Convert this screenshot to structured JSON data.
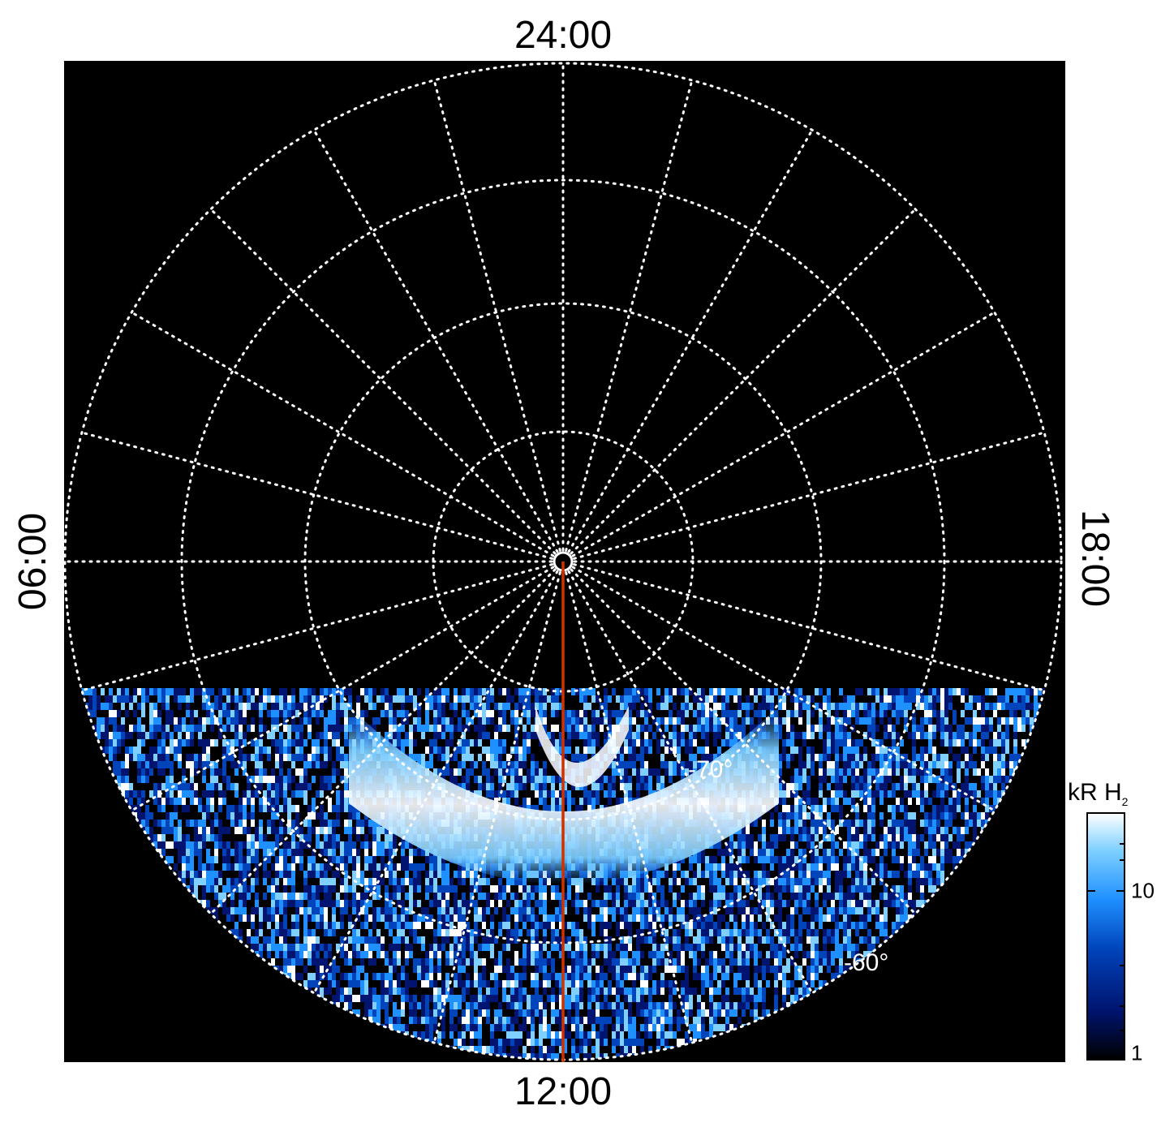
{
  "map": {
    "local_time_labels": {
      "top": "24:00",
      "bottom": "12:00",
      "left": "06:00",
      "right": "18:00"
    },
    "latitude_labels": [
      "-70°",
      "-60°"
    ],
    "meridian_line_color": "#cc3300",
    "grid_color": "#ffffff",
    "background_color": "#000000"
  },
  "colorbar": {
    "title": "kR H",
    "title_subscript": "2",
    "tick_labels": [
      "10",
      "1"
    ],
    "colors": [
      "#ffffff",
      "#7fd0ff",
      "#1f90ff",
      "#0044bb",
      "#001470",
      "#000000"
    ]
  }
}
